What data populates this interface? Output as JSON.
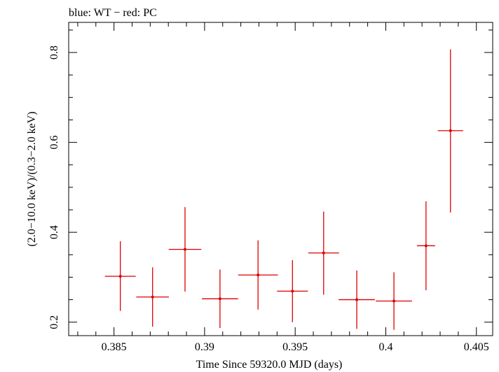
{
  "chart_data": {
    "type": "scatter",
    "title": "blue: WT − red: PC",
    "xlabel": "Time Since 59320.0 MJD (days)",
    "ylabel": "(2.0−10.0 keV)/(0.3−2.0 keV)",
    "xlim": [
      0.3825,
      0.4059
    ],
    "ylim": [
      0.17,
      0.867
    ],
    "x_ticks": [
      "0.385",
      "0.39",
      "0.395",
      "0.4",
      "0.405"
    ],
    "x_tick_values": [
      0.385,
      0.39,
      0.395,
      0.4,
      0.405
    ],
    "y_ticks": [
      "0.2",
      "0.4",
      "0.6",
      "0.8"
    ],
    "y_tick_values": [
      0.2,
      0.4,
      0.6,
      0.8
    ],
    "grid": false,
    "series": [
      {
        "color": "#dd0000",
        "points": [
          {
            "x": 0.38535,
            "xerr": 0.00085,
            "y": 0.302,
            "yerr_low": 0.077,
            "yerr_high": 0.078
          },
          {
            "x": 0.38713,
            "xerr": 0.0009,
            "y": 0.256,
            "yerr_low": 0.066,
            "yerr_high": 0.066
          },
          {
            "x": 0.38892,
            "xerr": 0.0009,
            "y": 0.362,
            "yerr_low": 0.094,
            "yerr_high": 0.094
          },
          {
            "x": 0.39085,
            "xerr": 0.001,
            "y": 0.252,
            "yerr_low": 0.065,
            "yerr_high": 0.065
          },
          {
            "x": 0.39295,
            "xerr": 0.0011,
            "y": 0.305,
            "yerr_low": 0.077,
            "yerr_high": 0.077
          },
          {
            "x": 0.39485,
            "xerr": 0.00085,
            "y": 0.269,
            "yerr_low": 0.069,
            "yerr_high": 0.069
          },
          {
            "x": 0.39657,
            "xerr": 0.00085,
            "y": 0.354,
            "yerr_low": 0.093,
            "yerr_high": 0.092
          },
          {
            "x": 0.3984,
            "xerr": 0.001,
            "y": 0.25,
            "yerr_low": 0.065,
            "yerr_high": 0.065
          },
          {
            "x": 0.40045,
            "xerr": 0.001,
            "y": 0.247,
            "yerr_low": 0.064,
            "yerr_high": 0.064
          },
          {
            "x": 0.40222,
            "xerr": 0.0005,
            "y": 0.37,
            "yerr_low": 0.099,
            "yerr_high": 0.099
          },
          {
            "x": 0.40357,
            "xerr": 0.0007,
            "y": 0.626,
            "yerr_low": 0.182,
            "yerr_high": 0.181
          }
        ]
      }
    ]
  }
}
